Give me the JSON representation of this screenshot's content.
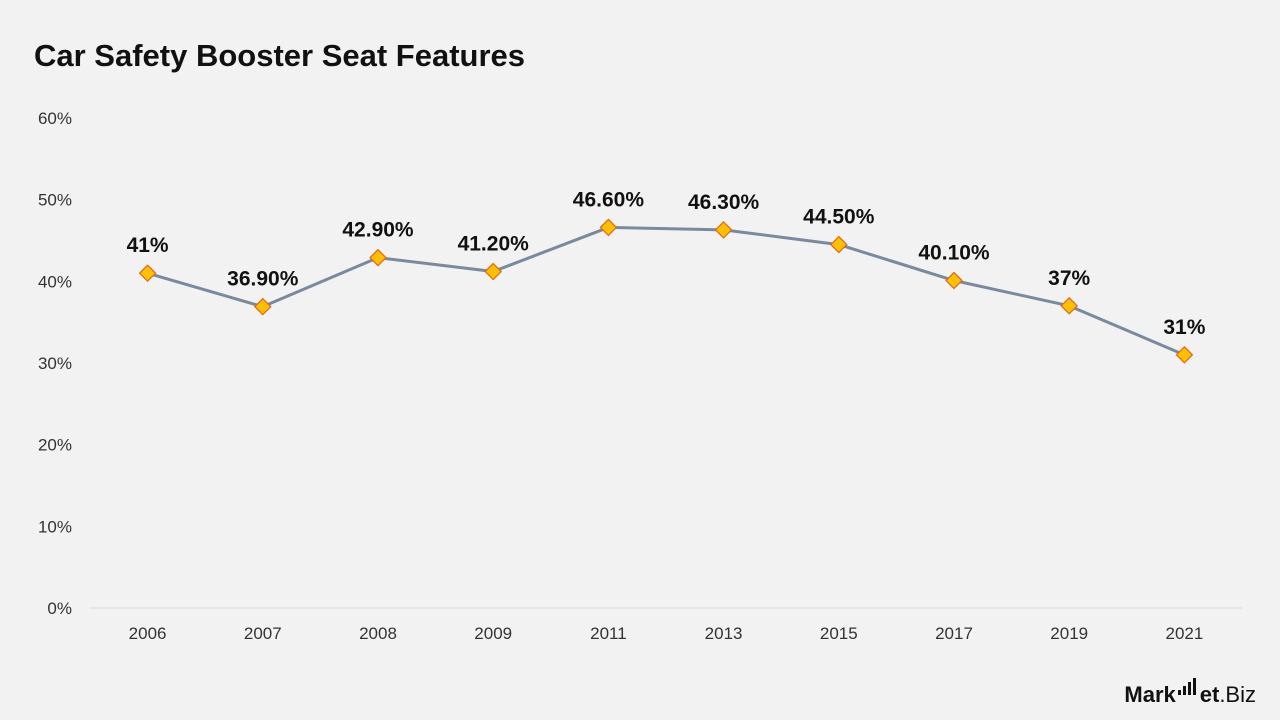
{
  "title": "Car Safety Booster Seat Features",
  "logo": {
    "part1": "Mark",
    "part2": "et",
    "part3": ".Biz"
  },
  "colors": {
    "line": "#7a8a9e",
    "marker_fill": "#ffc000",
    "marker_stroke": "#e0651a",
    "text": "#111111",
    "axis": "#d9d9d9"
  },
  "chart_data": {
    "type": "line",
    "title": "Car Safety Booster Seat Features",
    "categories": [
      "2006",
      "2007",
      "2008",
      "2009",
      "2011",
      "2013",
      "2015",
      "2017",
      "2019",
      "2021"
    ],
    "values": [
      41,
      36.9,
      42.9,
      41.2,
      46.6,
      46.3,
      44.5,
      40.1,
      37,
      31
    ],
    "data_labels": [
      "41%",
      "36.90%",
      "42.90%",
      "41.20%",
      "46.60%",
      "46.30%",
      "44.50%",
      "40.10%",
      "37%",
      "31%"
    ],
    "y_ticks": [
      "0%",
      "10%",
      "20%",
      "30%",
      "40%",
      "50%",
      "60%"
    ],
    "ylim": [
      0,
      60
    ],
    "grid": false,
    "marker": "diamond",
    "legend": "none"
  }
}
